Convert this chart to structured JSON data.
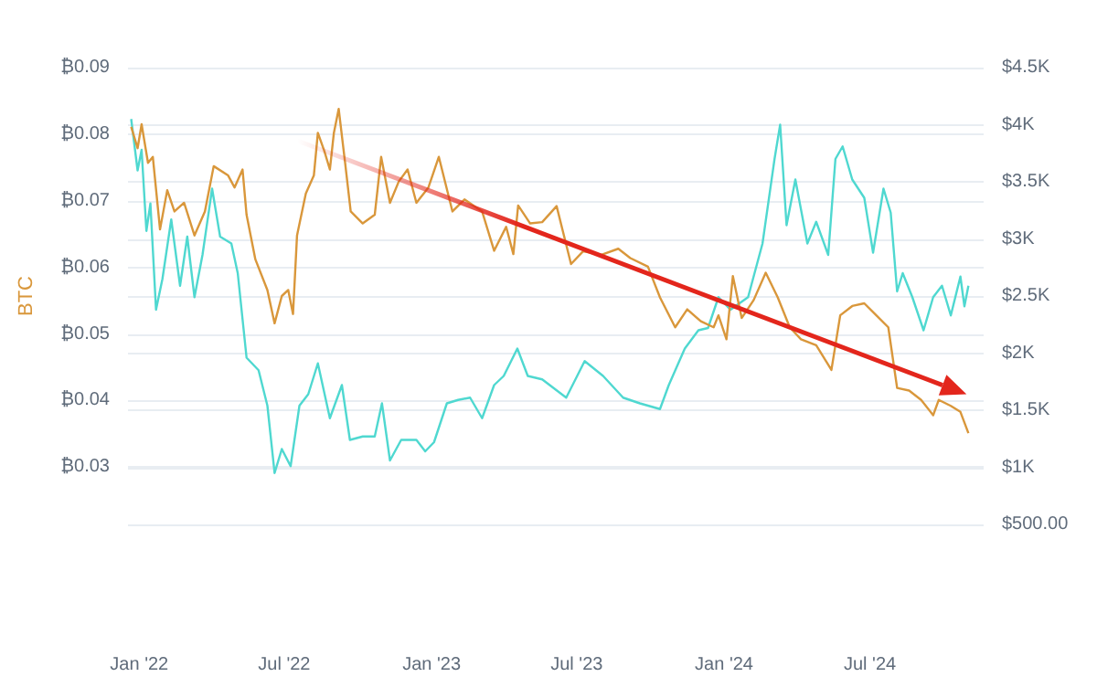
{
  "chart_data": {
    "type": "line",
    "ylabel": "BTC",
    "xlim": [
      "2021-12-18",
      "2024-11-20"
    ],
    "xticks": [
      {
        "value": "2022-01-01",
        "label": "Jan '22"
      },
      {
        "value": "2022-07-01",
        "label": "Jul '22"
      },
      {
        "value": "2023-01-01",
        "label": "Jan '23"
      },
      {
        "value": "2023-07-01",
        "label": "Jul '23"
      },
      {
        "value": "2024-01-01",
        "label": "Jan '24"
      },
      {
        "value": "2024-07-01",
        "label": "Jul '24"
      }
    ],
    "ylim": [
      0.0214,
      0.09
    ],
    "yticks": [
      {
        "value": 0.03,
        "label": "₿0.03"
      },
      {
        "value": 0.04,
        "label": "₿0.04"
      },
      {
        "value": 0.05,
        "label": "₿0.05"
      },
      {
        "value": 0.06,
        "label": "₿0.06"
      },
      {
        "value": 0.07,
        "label": "₿0.07"
      },
      {
        "value": 0.08,
        "label": "₿0.08"
      },
      {
        "value": 0.09,
        "label": "₿0.09"
      }
    ],
    "y2lim": [
      500,
      4500
    ],
    "y2ticks": [
      {
        "value": 500,
        "label": "$500.00"
      },
      {
        "value": 1000,
        "label": "$1K"
      },
      {
        "value": 1500,
        "label": "$1.5K"
      },
      {
        "value": 2000,
        "label": "$2K"
      },
      {
        "value": 2500,
        "label": "$2.5K"
      },
      {
        "value": 3000,
        "label": "$3K"
      },
      {
        "value": 3500,
        "label": "$3.5K"
      },
      {
        "value": 4000,
        "label": "$4K"
      },
      {
        "value": 4500,
        "label": "$4.5K"
      }
    ],
    "grid": "y",
    "series": [
      {
        "color": "#4fd8d0",
        "axis": "y2",
        "x": [
          "2021-12-22",
          "2021-12-30",
          "2022-01-04",
          "2022-01-10",
          "2022-01-15",
          "2022-01-22",
          "2022-01-30",
          "2022-02-10",
          "2022-02-21",
          "2022-03-02",
          "2022-03-11",
          "2022-03-21",
          "2022-04-02",
          "2022-04-12",
          "2022-04-26",
          "2022-05-04",
          "2022-05-15",
          "2022-05-30",
          "2022-06-10",
          "2022-06-19",
          "2022-06-28",
          "2022-07-09",
          "2022-07-20",
          "2022-07-31",
          "2022-08-12",
          "2022-08-27",
          "2022-09-11",
          "2022-09-21",
          "2022-10-07",
          "2022-10-22",
          "2022-10-31",
          "2022-11-10",
          "2022-11-24",
          "2022-12-13",
          "2022-12-24",
          "2023-01-04",
          "2023-01-20",
          "2023-02-03",
          "2023-02-18",
          "2023-03-05",
          "2023-03-20",
          "2023-04-01",
          "2023-04-18",
          "2023-05-01",
          "2023-05-19",
          "2023-06-18",
          "2023-07-11",
          "2023-08-03",
          "2023-08-28",
          "2023-09-18",
          "2023-10-13",
          "2023-10-24",
          "2023-11-13",
          "2023-11-30",
          "2023-12-12",
          "2023-12-25",
          "2024-01-09",
          "2024-01-31",
          "2024-02-18",
          "2024-03-04",
          "2024-03-11",
          "2024-03-19",
          "2024-03-30",
          "2024-04-14",
          "2024-04-25",
          "2024-05-10",
          "2024-05-19",
          "2024-05-28",
          "2024-06-09",
          "2024-06-24",
          "2024-07-05",
          "2024-07-18",
          "2024-07-27",
          "2024-08-04",
          "2024-08-11",
          "2024-08-23",
          "2024-09-06",
          "2024-09-18",
          "2024-09-29",
          "2024-10-10",
          "2024-10-22",
          "2024-10-27",
          "2024-11-01"
        ],
        "values": [
          4050,
          3600,
          3780,
          3070,
          3310,
          2380,
          2650,
          3170,
          2590,
          3020,
          2490,
          2860,
          3440,
          3020,
          2960,
          2700,
          1960,
          1850,
          1540,
          950,
          1160,
          1010,
          1540,
          1640,
          1910,
          1430,
          1720,
          1240,
          1270,
          1270,
          1560,
          1060,
          1240,
          1240,
          1140,
          1220,
          1560,
          1590,
          1610,
          1430,
          1720,
          1800,
          2040,
          1800,
          1770,
          1610,
          1930,
          1800,
          1610,
          1560,
          1510,
          1720,
          2040,
          2200,
          2220,
          2490,
          2380,
          2490,
          2960,
          3700,
          4000,
          3120,
          3520,
          2960,
          3150,
          2860,
          3700,
          3810,
          3520,
          3360,
          2880,
          3440,
          3230,
          2540,
          2700,
          2490,
          2200,
          2490,
          2590,
          2330,
          2670,
          2410,
          2590
        ]
      },
      {
        "color": "#d9973b",
        "x": [
          "2021-12-22",
          "2021-12-30",
          "2022-01-04",
          "2022-01-12",
          "2022-01-18",
          "2022-01-27",
          "2022-02-05",
          "2022-02-14",
          "2022-02-26",
          "2022-03-11",
          "2022-03-24",
          "2022-04-04",
          "2022-04-22",
          "2022-04-30",
          "2022-05-10",
          "2022-05-15",
          "2022-05-26",
          "2022-06-10",
          "2022-06-19",
          "2022-06-28",
          "2022-07-06",
          "2022-07-12",
          "2022-07-17",
          "2022-07-28",
          "2022-08-07",
          "2022-08-12",
          "2022-08-20",
          "2022-08-27",
          "2022-09-01",
          "2022-09-07",
          "2022-09-15",
          "2022-09-22",
          "2022-10-07",
          "2022-10-22",
          "2022-10-30",
          "2022-11-10",
          "2022-11-21",
          "2022-12-02",
          "2022-12-13",
          "2022-12-28",
          "2023-01-10",
          "2023-01-27",
          "2023-02-11",
          "2023-03-05",
          "2023-03-20",
          "2023-04-04",
          "2023-04-13",
          "2023-04-19",
          "2023-05-04",
          "2023-05-19",
          "2023-06-06",
          "2023-06-24",
          "2023-07-09",
          "2023-08-01",
          "2023-08-22",
          "2023-09-06",
          "2023-09-28",
          "2023-10-13",
          "2023-11-01",
          "2023-11-16",
          "2023-12-03",
          "2023-12-19",
          "2023-12-25",
          "2024-01-04",
          "2024-01-12",
          "2024-01-23",
          "2024-02-07",
          "2024-02-22",
          "2024-03-08",
          "2024-03-23",
          "2024-04-06",
          "2024-04-25",
          "2024-05-14",
          "2024-05-25",
          "2024-06-09",
          "2024-06-24",
          "2024-07-09",
          "2024-07-24",
          "2024-08-04",
          "2024-08-19",
          "2024-09-03",
          "2024-09-18",
          "2024-09-25",
          "2024-10-10",
          "2024-10-22",
          "2024-11-01"
        ],
        "values": [
          0.0811,
          0.0779,
          0.0815,
          0.0757,
          0.0766,
          0.0657,
          0.0716,
          0.0684,
          0.0697,
          0.0648,
          0.0684,
          0.0752,
          0.0738,
          0.072,
          0.0747,
          0.0679,
          0.0612,
          0.0566,
          0.0516,
          0.0557,
          0.0566,
          0.053,
          0.0648,
          0.0711,
          0.0738,
          0.0802,
          0.0775,
          0.0747,
          0.0802,
          0.0838,
          0.0757,
          0.0684,
          0.0666,
          0.0679,
          0.0766,
          0.0697,
          0.0729,
          0.0747,
          0.0697,
          0.072,
          0.0766,
          0.0684,
          0.0702,
          0.0684,
          0.0625,
          0.0661,
          0.062,
          0.0693,
          0.0666,
          0.0668,
          0.0692,
          0.0605,
          0.0624,
          0.0619,
          0.0628,
          0.0614,
          0.0601,
          0.0555,
          0.051,
          0.0537,
          0.0519,
          0.051,
          0.0528,
          0.0492,
          0.0587,
          0.0524,
          0.0551,
          0.0592,
          0.0555,
          0.051,
          0.0492,
          0.0483,
          0.0446,
          0.0528,
          0.0542,
          0.0546,
          0.0528,
          0.051,
          0.0419,
          0.0415,
          0.0401,
          0.0378,
          0.0401,
          0.0392,
          0.0383,
          0.0351
        ]
      }
    ]
  }
}
